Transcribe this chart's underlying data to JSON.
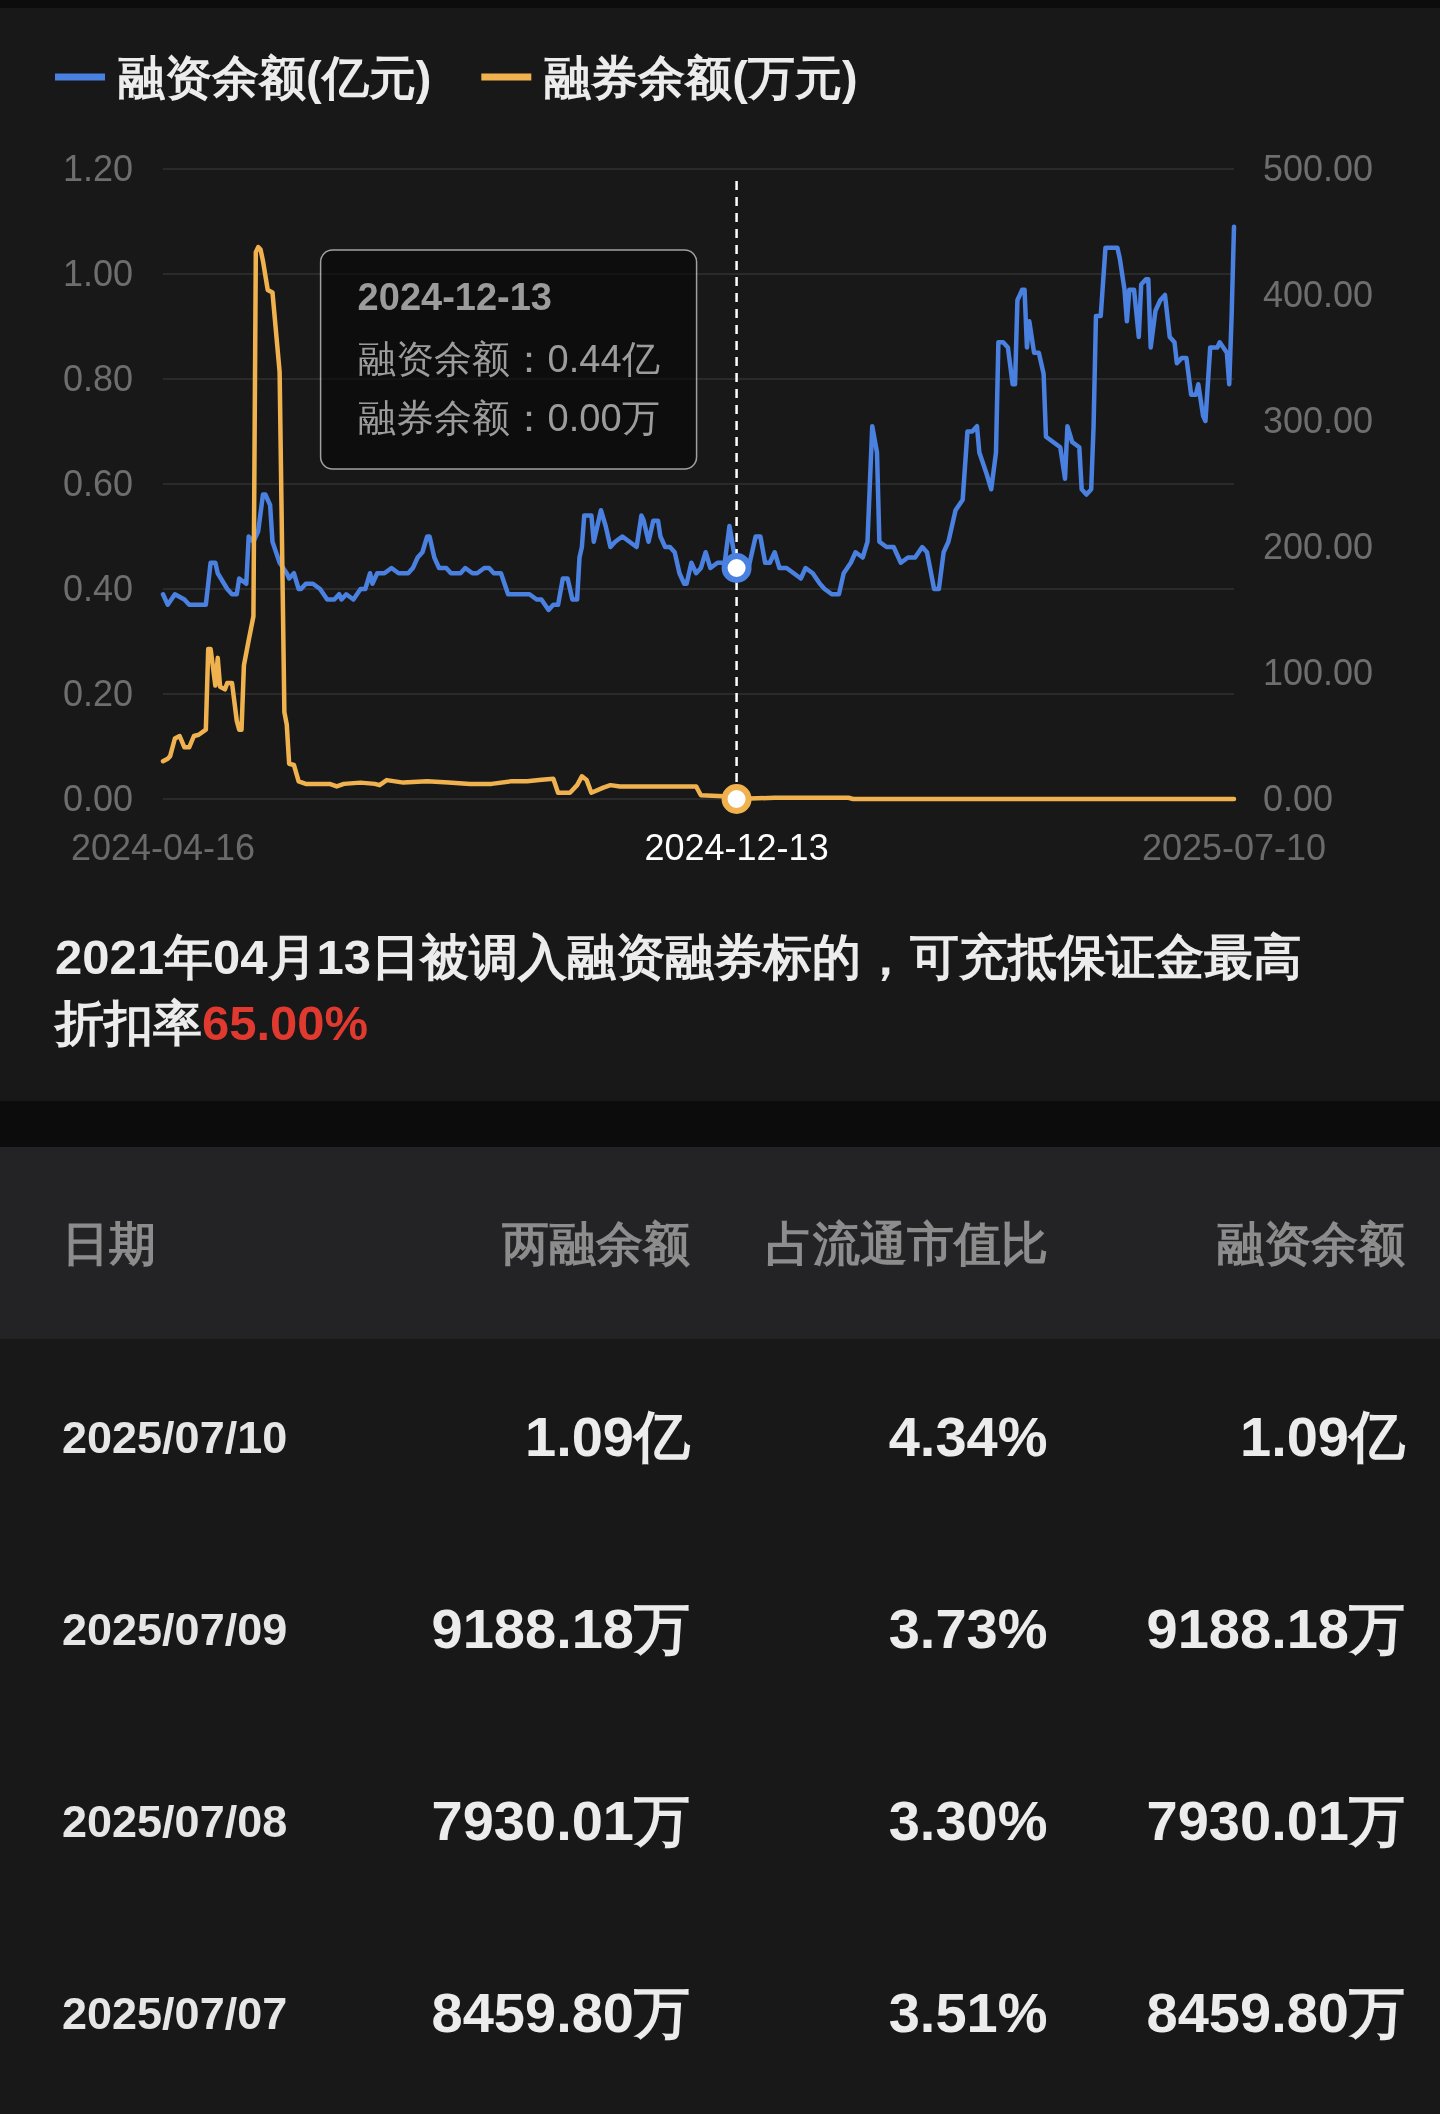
{
  "chart_data": [
    {
      "type": "line",
      "legend": "top left",
      "grid": "y",
      "xlim": [
        "2024-04-16",
        "2025-07-10"
      ],
      "xticks": [
        "2024-04-16",
        "2025-07-10"
      ],
      "ylim": [
        0,
        1.2
      ],
      "yticks": [
        {
          "value": 0,
          "label": "0.00"
        },
        {
          "value": 0.2,
          "label": "0.20"
        },
        {
          "value": 0.4,
          "label": "0.40"
        },
        {
          "value": 0.6,
          "label": "0.60"
        },
        {
          "value": 0.8,
          "label": "0.80"
        },
        {
          "value": 1.0,
          "label": "1.00"
        },
        {
          "value": 1.2,
          "label": "1.20"
        }
      ],
      "y2lim": [
        0,
        500
      ],
      "y2ticks": [
        {
          "value": 0,
          "label": "0.00"
        },
        {
          "value": 100,
          "label": "100.00"
        },
        {
          "value": 200,
          "label": "200.00"
        },
        {
          "value": 300,
          "label": "300.00"
        },
        {
          "value": 400,
          "label": "400.00"
        },
        {
          "value": 500,
          "label": "500.00"
        }
      ],
      "series": [
        {
          "name": "融资余额(亿元)",
          "color": "#4a80e0",
          "x": [
            "2024-04-16",
            "2024-04-18",
            "2024-04-21",
            "2024-04-25",
            "2024-04-27",
            "2024-05-01",
            "2024-05-04",
            "2024-05-06",
            "2024-05-08",
            "2024-05-09",
            "2024-05-13",
            "2024-05-15",
            "2024-05-17",
            "2024-05-18",
            "2024-05-21",
            "2024-05-22",
            "2024-05-24",
            "2024-05-26",
            "2024-05-28",
            "2024-05-29",
            "2024-05-31",
            "2024-06-01",
            "2024-06-04",
            "2024-06-07",
            "2024-06-08",
            "2024-06-10",
            "2024-06-12",
            "2024-06-13",
            "2024-06-15",
            "2024-06-18",
            "2024-06-21",
            "2024-06-24",
            "2024-06-27",
            "2024-06-29",
            "2024-06-30",
            "2024-07-02",
            "2024-07-05",
            "2024-07-08",
            "2024-07-10",
            "2024-07-12",
            "2024-07-13",
            "2024-07-15",
            "2024-07-18",
            "2024-07-21",
            "2024-07-24",
            "2024-07-26",
            "2024-07-28",
            "2024-07-30",
            "2024-08-01",
            "2024-08-03",
            "2024-08-05",
            "2024-08-06",
            "2024-08-08",
            "2024-08-10",
            "2024-08-13",
            "2024-08-15",
            "2024-08-18",
            "2024-08-19",
            "2024-08-21",
            "2024-08-24",
            "2024-08-26",
            "2024-08-29",
            "2024-08-31",
            "2024-09-02",
            "2024-09-05",
            "2024-09-08",
            "2024-09-12",
            "2024-09-14",
            "2024-09-17",
            "2024-09-20",
            "2024-09-22",
            "2024-09-25",
            "2024-09-27",
            "2024-09-29",
            "2024-10-01",
            "2024-10-03",
            "2024-10-05",
            "2024-10-07",
            "2024-10-08",
            "2024-10-09",
            "2024-10-10",
            "2024-10-13",
            "2024-10-14",
            "2024-10-17",
            "2024-10-19",
            "2024-10-21",
            "2024-10-23",
            "2024-10-26",
            "2024-10-29",
            "2024-11-01",
            "2024-11-03",
            "2024-11-04",
            "2024-11-06",
            "2024-11-08",
            "2024-11-10",
            "2024-11-11",
            "2024-11-13",
            "2024-11-15",
            "2024-11-17",
            "2024-11-19",
            "2024-11-21",
            "2024-11-22",
            "2024-11-24",
            "2024-11-26",
            "2024-11-28",
            "2024-11-30",
            "2024-12-02",
            "2024-12-05",
            "2024-12-08",
            "2024-12-10",
            "2024-12-13",
            "2024-12-18",
            "2024-12-21",
            "2024-12-23",
            "2024-12-25",
            "2024-12-27",
            "2024-12-29",
            "2024-12-31",
            "2025-01-03",
            "2025-01-06",
            "2025-01-09",
            "2025-01-11",
            "2025-01-14",
            "2025-01-17",
            "2025-01-19",
            "2025-01-22",
            "2025-01-25",
            "2025-01-27",
            "2025-01-30",
            "2025-02-01",
            "2025-02-04",
            "2025-02-06",
            "2025-02-08",
            "2025-02-10",
            "2025-02-11",
            "2025-02-14",
            "2025-02-17",
            "2025-02-20",
            "2025-02-23",
            "2025-02-26",
            "2025-03-01",
            "2025-03-03",
            "2025-03-06",
            "2025-03-08",
            "2025-03-10",
            "2025-03-12",
            "2025-03-15",
            "2025-03-18",
            "2025-03-20",
            "2025-03-22",
            "2025-03-24",
            "2025-03-25",
            "2025-03-28",
            "2025-03-30",
            "2025-04-01",
            "2025-04-02",
            "2025-04-04",
            "2025-04-06",
            "2025-04-08",
            "2025-04-09",
            "2025-04-10",
            "2025-04-12",
            "2025-04-13",
            "2025-04-14",
            "2025-04-15",
            "2025-04-17",
            "2025-04-19",
            "2025-04-21",
            "2025-04-22",
            "2025-04-25",
            "2025-04-28",
            "2025-04-30",
            "2025-05-01",
            "2025-05-03",
            "2025-05-06",
            "2025-05-07",
            "2025-05-09",
            "2025-05-11",
            "2025-05-12",
            "2025-05-13",
            "2025-05-15",
            "2025-05-17",
            "2025-05-19",
            "2025-05-22",
            "2025-05-23",
            "2025-05-25",
            "2025-05-26",
            "2025-05-27",
            "2025-05-29",
            "2025-05-31",
            "2025-06-01",
            "2025-06-03",
            "2025-06-04",
            "2025-06-05",
            "2025-06-07",
            "2025-06-09",
            "2025-06-11",
            "2025-06-13",
            "2025-06-15",
            "2025-06-16",
            "2025-06-18",
            "2025-06-20",
            "2025-06-22",
            "2025-06-24",
            "2025-06-25",
            "2025-06-27",
            "2025-06-28",
            "2025-06-30",
            "2025-07-03",
            "2025-07-04",
            "2025-07-07",
            "2025-07-08",
            "2025-07-09",
            "2025-07-10"
          ],
          "values": [
            0.39,
            0.37,
            0.39,
            0.38,
            0.37,
            0.37,
            0.37,
            0.45,
            0.45,
            0.43,
            0.4,
            0.39,
            0.39,
            0.42,
            0.41,
            0.5,
            0.49,
            0.51,
            0.58,
            0.58,
            0.56,
            0.49,
            0.45,
            0.43,
            0.42,
            0.43,
            0.4,
            0.4,
            0.41,
            0.41,
            0.4,
            0.38,
            0.38,
            0.39,
            0.38,
            0.39,
            0.38,
            0.4,
            0.4,
            0.43,
            0.41,
            0.43,
            0.43,
            0.44,
            0.43,
            0.43,
            0.43,
            0.44,
            0.46,
            0.47,
            0.5,
            0.5,
            0.46,
            0.44,
            0.44,
            0.43,
            0.43,
            0.43,
            0.44,
            0.43,
            0.43,
            0.44,
            0.44,
            0.43,
            0.43,
            0.39,
            0.39,
            0.39,
            0.39,
            0.38,
            0.38,
            0.36,
            0.37,
            0.37,
            0.42,
            0.42,
            0.38,
            0.38,
            0.46,
            0.48,
            0.54,
            0.54,
            0.49,
            0.55,
            0.52,
            0.48,
            0.49,
            0.5,
            0.49,
            0.48,
            0.54,
            0.53,
            0.49,
            0.53,
            0.53,
            0.5,
            0.48,
            0.48,
            0.47,
            0.43,
            0.41,
            0.41,
            0.45,
            0.43,
            0.44,
            0.47,
            0.44,
            0.45,
            0.45,
            0.52,
            0.44,
            0.44,
            0.5,
            0.5,
            0.45,
            0.45,
            0.47,
            0.44,
            0.44,
            0.43,
            0.42,
            0.44,
            0.43,
            0.41,
            0.4,
            0.39,
            0.39,
            0.43,
            0.45,
            0.47,
            0.46,
            0.49,
            0.71,
            0.66,
            0.49,
            0.48,
            0.48,
            0.45,
            0.46,
            0.46,
            0.48,
            0.47,
            0.4,
            0.4,
            0.47,
            0.49,
            0.55,
            0.57,
            0.7,
            0.7,
            0.71,
            0.66,
            0.62,
            0.59,
            0.66,
            0.87,
            0.87,
            0.86,
            0.79,
            0.79,
            0.95,
            0.97,
            0.97,
            0.86,
            0.91,
            0.85,
            0.85,
            0.81,
            0.69,
            0.68,
            0.67,
            0.61,
            0.71,
            0.68,
            0.67,
            0.59,
            0.58,
            0.59,
            0.71,
            0.92,
            0.92,
            1.05,
            1.05,
            1.05,
            1.03,
            0.97,
            0.91,
            0.97,
            0.97,
            0.88,
            0.98,
            0.99,
            0.99,
            0.86,
            0.93,
            0.95,
            0.96,
            0.88,
            0.87,
            0.83,
            0.84,
            0.84,
            0.77,
            0.77,
            0.79,
            0.73,
            0.72,
            0.86,
            0.86,
            0.87,
            0.85,
            0.79,
            0.92,
            1.09
          ]
        },
        {
          "name": "融券余额(万元)",
          "color": "#f0b24f",
          "axis": "y2",
          "x": [
            "2024-04-16",
            "2024-04-18",
            "2024-04-19",
            "2024-04-21",
            "2024-04-23",
            "2024-04-25",
            "2024-04-27",
            "2024-04-29",
            "2024-05-01",
            "2024-05-04",
            "2024-05-05",
            "2024-05-06",
            "2024-05-08",
            "2024-05-09",
            "2024-05-10",
            "2024-05-12",
            "2024-05-13",
            "2024-05-15",
            "2024-05-17",
            "2024-05-18",
            "2024-05-19",
            "2024-05-20",
            "2024-05-22",
            "2024-05-24",
            "2024-05-25",
            "2024-05-26",
            "2024-05-27",
            "2024-05-28",
            "2024-05-30",
            "2024-06-01",
            "2024-06-02",
            "2024-06-04",
            "2024-06-06",
            "2024-06-07",
            "2024-06-08",
            "2024-06-10",
            "2024-06-12",
            "2024-06-15",
            "2024-06-19",
            "2024-06-25",
            "2024-06-28",
            "2024-07-01",
            "2024-07-08",
            "2024-07-14",
            "2024-07-16",
            "2024-07-19",
            "2024-07-26",
            "2024-08-05",
            "2024-08-14",
            "2024-08-23",
            "2024-09-01",
            "2024-09-09",
            "2024-09-16",
            "2024-09-21",
            "2024-09-27",
            "2024-09-29",
            "2024-10-04",
            "2024-10-07",
            "2024-10-09",
            "2024-10-11",
            "2024-10-13",
            "2024-10-18",
            "2024-10-21",
            "2024-10-25",
            "2024-11-03",
            "2024-11-13",
            "2024-11-22",
            "2024-11-26",
            "2024-11-28",
            "2024-12-10",
            "2024-12-13",
            "2024-12-29",
            "2025-01-29",
            "2025-01-31",
            "2025-07-10"
          ],
          "values": [
            30,
            32,
            34,
            48,
            50,
            41,
            41,
            50,
            51,
            55,
            119,
            119,
            90,
            112,
            89,
            87,
            92,
            92,
            62,
            55,
            55,
            106,
            126,
            145,
            434,
            438,
            436,
            427,
            404,
            402,
            381,
            339,
            69,
            59,
            28,
            27,
            14,
            12,
            12,
            12,
            10,
            12,
            13,
            12,
            11,
            15,
            13,
            14,
            13,
            12,
            12,
            14,
            14,
            15,
            16,
            5,
            5,
            11,
            18,
            15,
            5,
            9,
            11,
            10,
            10,
            10,
            10,
            10,
            3,
            2,
            0,
            1,
            1,
            0,
            0
          ]
        }
      ],
      "ref_lines": [
        {
          "axis": "x",
          "value": "2024-12-13",
          "label": "2024-12-13",
          "line_style": "dashed",
          "color": "#ffffff"
        }
      ],
      "annotations": [
        "2024-12-13",
        "融资余额：0.44亿",
        "融券余额：0.00万",
        "2021年04月13日被调入融资融券标的，可充抵保证金最高",
        "折扣率",
        "65.00%"
      ]
    },
    {
      "type": "other",
      "categories": [
        "日期",
        "两融余额",
        "占流通市值比",
        "融资余额"
      ],
      "annotations": [
        "2025/07/10",
        "1.09亿",
        "4.34%",
        "1.09亿",
        "2025/07/09",
        "9188.18万",
        "3.73%",
        "9188.18万",
        "2025/07/08",
        "7930.01万",
        "3.30%",
        "7930.01万",
        "2025/07/07",
        "8459.80万",
        "3.51%",
        "8459.80万"
      ]
    }
  ]
}
